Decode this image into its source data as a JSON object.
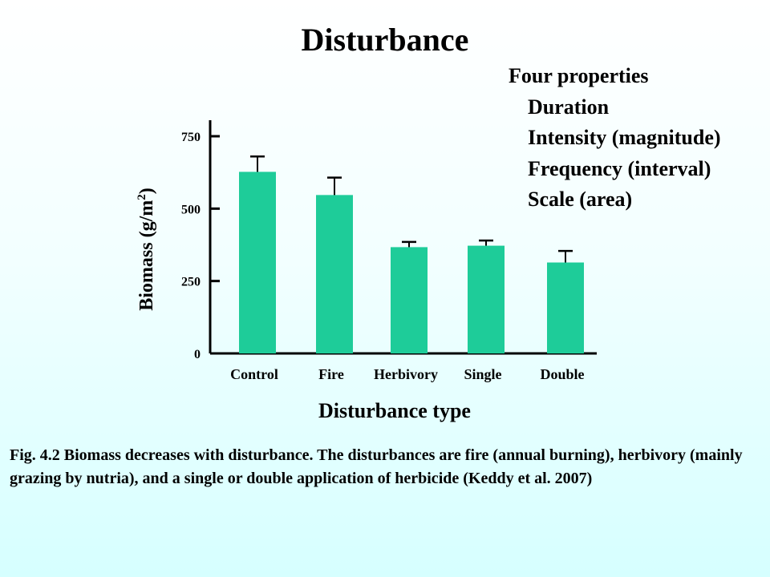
{
  "slide": {
    "title": "Disturbance"
  },
  "properties": {
    "heading": "Four properties",
    "items": [
      "Duration",
      "Intensity (magnitude)",
      "Frequency (interval)",
      "Scale (area)"
    ]
  },
  "chart_data": {
    "type": "bar",
    "categories": [
      "Control",
      "Fire",
      "Herbivory",
      "Single",
      "Double"
    ],
    "values": [
      627,
      547,
      367,
      372,
      314
    ],
    "errors": [
      53,
      60,
      18,
      18,
      40
    ],
    "xlabel": "Disturbance type",
    "ylabel": "Biomass (g/m",
    "ylabel_sup": "2",
    "ylabel_end": ")",
    "ylim": [
      0,
      750
    ],
    "yticks": [
      0,
      250,
      500,
      750
    ],
    "grid": false,
    "bar_color": "#1ecc99"
  },
  "caption": "Fig. 4.2 Biomass decreases with disturbance. The disturbances are fire (annual burning), herbivory (mainly grazing by nutria), and a single or double application of herbicide (Keddy et al. 2007)"
}
